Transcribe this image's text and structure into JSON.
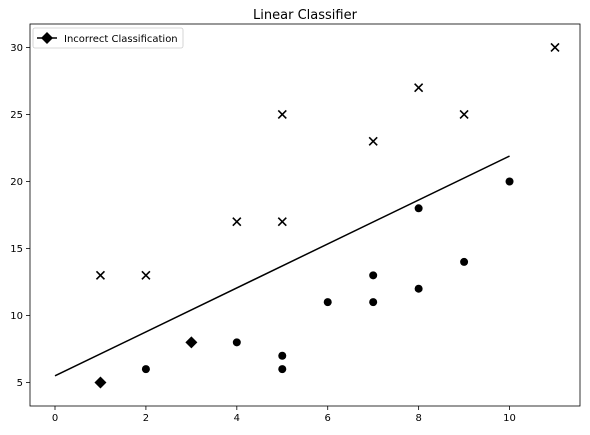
{
  "chart_data": {
    "type": "scatter",
    "title": "Linear Classifier",
    "xlabel": "",
    "ylabel": "",
    "xlim": [
      -0.55,
      11.55
    ],
    "ylim": [
      3.25,
      31.75
    ],
    "xticks": [
      0,
      2,
      4,
      6,
      8,
      10
    ],
    "yticks": [
      5,
      10,
      15,
      20,
      25,
      30
    ],
    "grid": false,
    "legend_position": "top-left",
    "legend": [
      {
        "label": "Incorrect Classification",
        "marker": "diamond",
        "color": "#000000"
      }
    ],
    "series": [
      {
        "marker": "x",
        "color": "#000000",
        "points": [
          [
            1,
            13
          ],
          [
            2,
            13
          ],
          [
            4,
            17
          ],
          [
            5,
            17
          ],
          [
            5,
            25
          ],
          [
            7,
            23
          ],
          [
            8,
            27
          ],
          [
            9,
            25
          ],
          [
            11,
            30
          ]
        ]
      },
      {
        "marker": "circle",
        "color": "#000000",
        "points": [
          [
            2,
            6
          ],
          [
            4,
            8
          ],
          [
            5,
            7
          ],
          [
            5,
            6
          ],
          [
            6,
            11
          ],
          [
            7,
            13
          ],
          [
            7,
            11
          ],
          [
            8,
            18
          ],
          [
            8,
            12
          ],
          [
            9,
            14
          ],
          [
            10,
            20
          ]
        ]
      },
      {
        "name": "Incorrect Classification",
        "marker": "diamond",
        "color": "#000000",
        "points": [
          [
            1,
            5
          ],
          [
            3,
            8
          ]
        ]
      }
    ],
    "decision_line": {
      "x": [
        0,
        10
      ],
      "y": [
        5.5,
        21.9
      ],
      "color": "#000000"
    }
  }
}
